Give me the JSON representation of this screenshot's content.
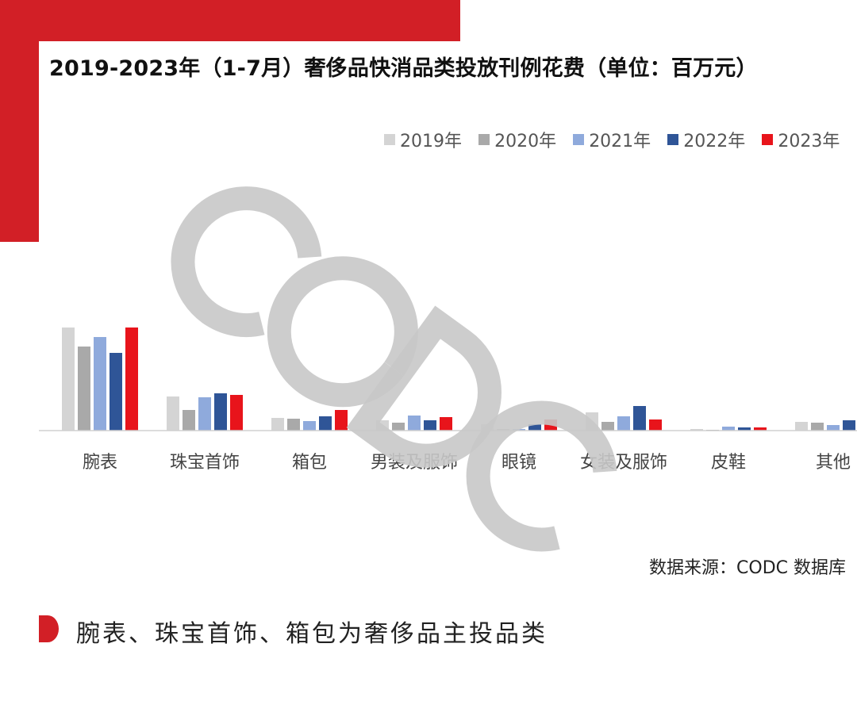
{
  "colors": {
    "accent": "#d21f26",
    "series": [
      "#d4d4d4",
      "#a9a9a9",
      "#8faadc",
      "#2f5597",
      "#e8141b"
    ],
    "watermark": "#c8c8c8"
  },
  "watermark_text": "CODC",
  "chart_data": {
    "type": "bar",
    "title": "2019-2023年（1-7月）奢侈品快消品类投放刊例花费（单位：百万元）",
    "categories": [
      "腕表",
      "珠宝首饰",
      "箱包",
      "男装及服饰",
      "眼镜",
      "女装及服饰",
      "皮鞋",
      "其他"
    ],
    "series": [
      {
        "name": "2019年",
        "values": [
          130,
          43,
          16,
          13,
          8,
          23,
          2,
          11
        ]
      },
      {
        "name": "2020年",
        "values": [
          106,
          26,
          15,
          10,
          2,
          11,
          1,
          10
        ]
      },
      {
        "name": "2021年",
        "values": [
          118,
          42,
          12,
          19,
          2,
          18,
          5,
          7
        ]
      },
      {
        "name": "2022年",
        "values": [
          98,
          47,
          18,
          13,
          8,
          31,
          4,
          13
        ]
      },
      {
        "name": "2023年",
        "values": [
          130,
          45,
          26,
          17,
          14,
          14,
          4,
          14
        ]
      }
    ],
    "legend_position": "top-right",
    "grid": false,
    "y_axis_visible": false,
    "ylim": [
      0,
      135
    ]
  },
  "source": "数据来源：CODC 数据库",
  "caption": "腕表、珠宝首饰、箱包为奢侈品主投品类"
}
